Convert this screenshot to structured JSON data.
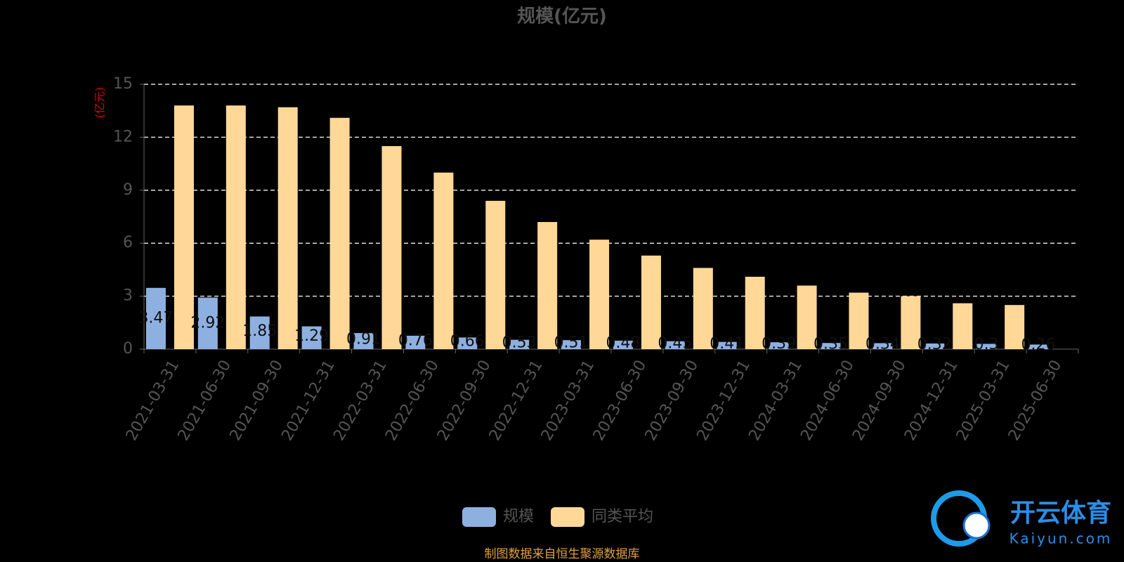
{
  "chart_data": {
    "type": "bar",
    "title": "规模(亿元)",
    "y_label": "(亿元)",
    "categories": [
      "2021-03-31",
      "2021-06-30",
      "2021-09-30",
      "2021-12-31",
      "2022-03-31",
      "2022-06-30",
      "2022-09-30",
      "2022-12-31",
      "2023-03-31",
      "2023-06-30",
      "2023-09-30",
      "2023-12-31",
      "2024-03-31",
      "2024-06-30",
      "2024-09-30",
      "2024-12-31",
      "2025-03-31",
      "2025-06-30"
    ],
    "series": [
      {
        "name": "规模",
        "color": "#8eb0e0",
        "values": [
          3.47,
          2.92,
          1.85,
          1.29,
          0.91,
          0.76,
          0.66,
          0.53,
          0.51,
          0.48,
          0.45,
          0.41,
          0.39,
          0.35,
          0.34,
          0.32,
          0.3,
          0.26
        ]
      },
      {
        "name": "同类平均",
        "color": "#ffd898",
        "values": [
          13.8,
          13.8,
          13.7,
          13.1,
          11.5,
          10.0,
          8.4,
          7.2,
          6.2,
          5.3,
          4.6,
          4.1,
          3.6,
          3.2,
          3.0,
          2.6,
          2.5,
          null
        ]
      }
    ],
    "ylim": [
      0,
      15
    ],
    "yticks": [
      0,
      3,
      6,
      9,
      12,
      15
    ],
    "grid": true,
    "source": "制图数据来自恒生聚源数据库"
  },
  "watermark": {
    "brand": "开云体育",
    "site": "Kaiyun.com"
  }
}
